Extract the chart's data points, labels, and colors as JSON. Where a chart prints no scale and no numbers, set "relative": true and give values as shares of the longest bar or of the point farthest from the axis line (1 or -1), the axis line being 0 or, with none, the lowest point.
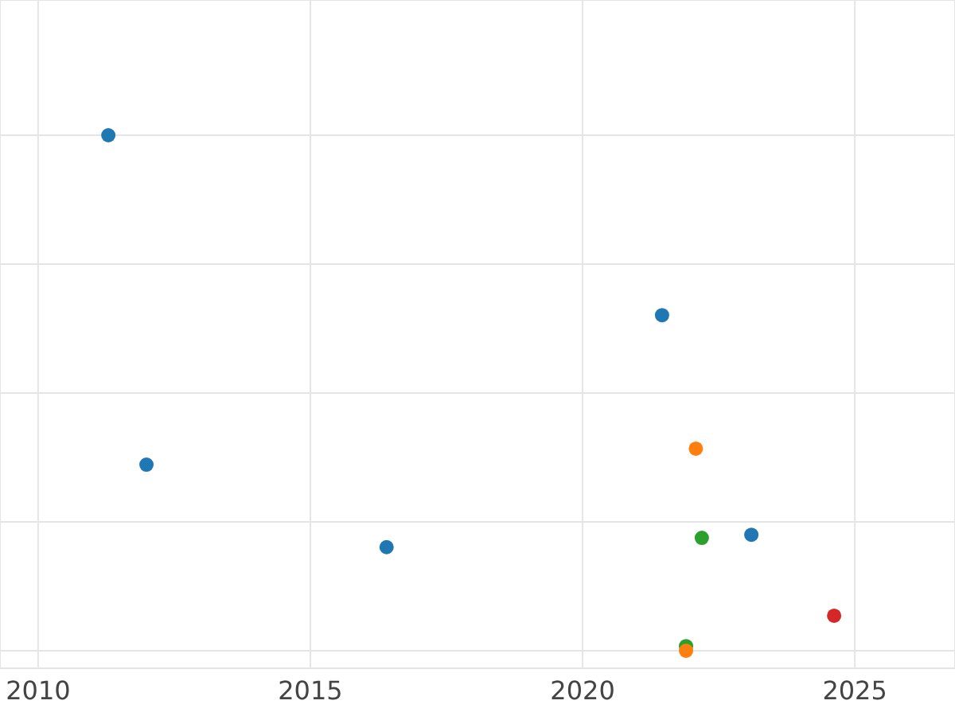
{
  "chart_data": {
    "type": "scatter",
    "relative": true,
    "x": [
      2011.29,
      2021.46,
      2011.99,
      2022.08,
      2016.4,
      2022.19,
      2023.1,
      2024.62,
      2021.9,
      2021.9
    ],
    "values": [
      1,
      0.651,
      0.361,
      0.392,
      0.201,
      0.219,
      0.225,
      0.068,
      0.009,
      0
    ],
    "colors": [
      "#1f77b4",
      "#1f77b4",
      "#1f77b4",
      "#ff7f0e",
      "#1f77b4",
      "#2ca02c",
      "#1f77b4",
      "#d62728",
      "#2ca02c",
      "#ff7f0e"
    ],
    "xlim": [
      2009.3,
      2026.84
    ],
    "xticks": [
      2010,
      2015,
      2020,
      2025
    ],
    "grid": true,
    "marker": "circle",
    "tick_labels": "x"
  }
}
